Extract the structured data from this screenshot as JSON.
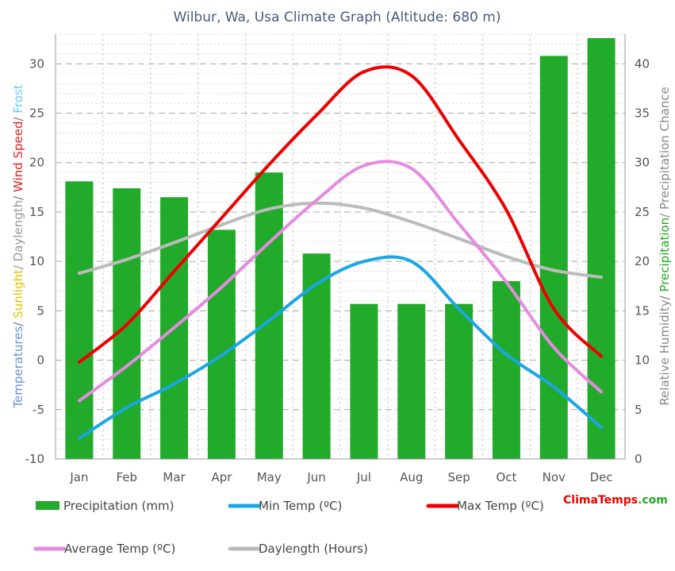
{
  "chart_data": {
    "type": "bar",
    "title": "Wilbur, Wa, Usa Climate Graph (Altitude: 680 m)",
    "categories": [
      "Jan",
      "Feb",
      "Mar",
      "Apr",
      "May",
      "Jun",
      "Jul",
      "Aug",
      "Sep",
      "Oct",
      "Nov",
      "Dec"
    ],
    "left_axis": {
      "label_parts": [
        {
          "text": "Temperatures",
          "color": "#6a8fd8"
        },
        {
          "text": "/ ",
          "color": "#777777"
        },
        {
          "text": "Sunlight",
          "color": "#e6c000"
        },
        {
          "text": "/ Daylength",
          "color": "#999999"
        },
        {
          "text": "/ ",
          "color": "#777777"
        },
        {
          "text": "Wind Speed",
          "color": "#dd2222"
        },
        {
          "text": "/ ",
          "color": "#777777"
        },
        {
          "text": "Frost",
          "color": "#66ccee"
        }
      ],
      "ylim": [
        -10,
        33
      ],
      "ticks": [
        -10,
        -5,
        0,
        5,
        10,
        15,
        20,
        25,
        30
      ]
    },
    "right_axis": {
      "label_parts": [
        {
          "text": "Relative Humidity",
          "color": "#888888"
        },
        {
          "text": "/ ",
          "color": "#777777"
        },
        {
          "text": "Precipitation",
          "color": "#22aa22"
        },
        {
          "text": "/ Precipitation Chance",
          "color": "#888888"
        }
      ],
      "ylim": [
        0,
        43
      ],
      "ticks": [
        0,
        5,
        10,
        15,
        20,
        25,
        30,
        35,
        40
      ]
    },
    "bars": {
      "name": "Precipitation (mm)",
      "color": "#22aa2a",
      "axis": "right",
      "values": [
        28.1,
        27.4,
        26.5,
        23.2,
        29.0,
        20.8,
        15.7,
        15.7,
        15.7,
        18.0,
        40.8,
        42.6
      ]
    },
    "series": [
      {
        "name": "Min Temp (ºC)",
        "color": "#1aa6e4",
        "axis": "left",
        "values": [
          -7.9,
          -4.8,
          -2.4,
          0.5,
          4.0,
          7.7,
          10.0,
          10.0,
          5.2,
          0.6,
          -2.7,
          -6.8
        ]
      },
      {
        "name": "Max Temp (ºC)",
        "color": "#ee0000",
        "axis": "left",
        "values": [
          -0.2,
          3.6,
          9.0,
          14.4,
          19.8,
          24.8,
          29.2,
          28.8,
          22.3,
          15.2,
          5.2,
          0.4
        ]
      },
      {
        "name": "Average Temp (ºC)",
        "color": "#e58be0",
        "axis": "left",
        "values": [
          -4.1,
          -0.6,
          3.3,
          7.4,
          11.9,
          16.2,
          19.7,
          19.4,
          13.8,
          7.9,
          1.3,
          -3.2
        ]
      },
      {
        "name": "Daylength (Hours)",
        "color": "#bbbbbb",
        "axis": "left",
        "values": [
          8.8,
          10.2,
          11.9,
          13.7,
          15.3,
          15.9,
          15.4,
          14.0,
          12.3,
          10.5,
          9.1,
          8.4
        ]
      }
    ],
    "grid": true,
    "legend_position": "bottom"
  },
  "brand": {
    "part1": "Clima",
    "part2": "Temps",
    "part3": ".com",
    "color": "#ee0000"
  }
}
